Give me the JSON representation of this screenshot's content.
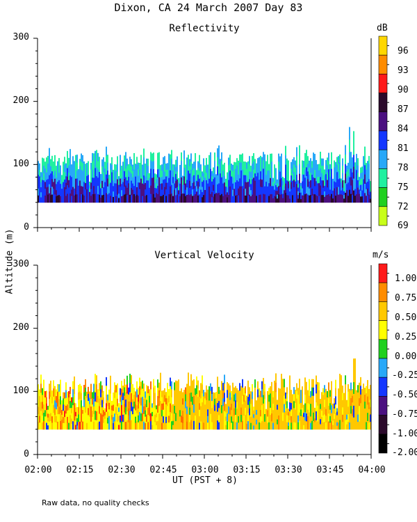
{
  "figure": {
    "title": "Dixon, CA 24 March 2007  Day  83",
    "ylabel": "Altitude (m)",
    "xlabel": "UT  (PST + 8)",
    "footnote": "Raw data, no quality checks"
  },
  "chart_data": [
    {
      "type": "heatmap",
      "title": "Reflectivity",
      "colorbar_units": "dB",
      "colorbar_labels": [
        "96",
        "93",
        "90",
        "87",
        "84",
        "81",
        "78",
        "75",
        "72",
        "69"
      ],
      "colors": [
        "#ffd700",
        "#ff8c00",
        "#ff1a1a",
        "#2b0a2b",
        "#4b1080",
        "#1437ff",
        "#28a8f8",
        "#20f0a0",
        "#20d020",
        "#c8ff1a"
      ],
      "x_ticks": [
        "02:00",
        "02:15",
        "02:30",
        "02:45",
        "03:00",
        "03:15",
        "03:30",
        "03:45",
        "04:00"
      ],
      "y_ticks": [
        "300",
        "200",
        "100",
        "0"
      ],
      "xlim": [
        0,
        120
      ],
      "ylim": [
        0,
        300
      ],
      "echo_bottom_m": 40,
      "echo_top_typical_m": 120,
      "echo_top_max_m": 160
    },
    {
      "type": "heatmap",
      "title": "Vertical Velocity",
      "colorbar_units": "m/s",
      "colorbar_labels": [
        "1.00",
        "0.75",
        "0.50",
        "0.25",
        "0.00",
        "-0.25",
        "-0.50",
        "-0.75",
        "-1.00",
        "-2.00"
      ],
      "colors": [
        "#ff1a1a",
        "#ff8c00",
        "#ffc800",
        "#ffff00",
        "#20d020",
        "#28a8f8",
        "#1437ff",
        "#4b1080",
        "#2b0a2b",
        "#000000"
      ],
      "x_ticks": [
        "02:00",
        "02:15",
        "02:30",
        "02:45",
        "03:00",
        "03:15",
        "03:30",
        "03:45",
        "04:00"
      ],
      "y_ticks": [
        "300",
        "200",
        "100",
        "0"
      ],
      "xlim": [
        0,
        120
      ],
      "ylim": [
        0,
        300
      ],
      "echo_bottom_m": 40,
      "echo_top_typical_m": 120,
      "echo_top_max_m": 160
    }
  ]
}
